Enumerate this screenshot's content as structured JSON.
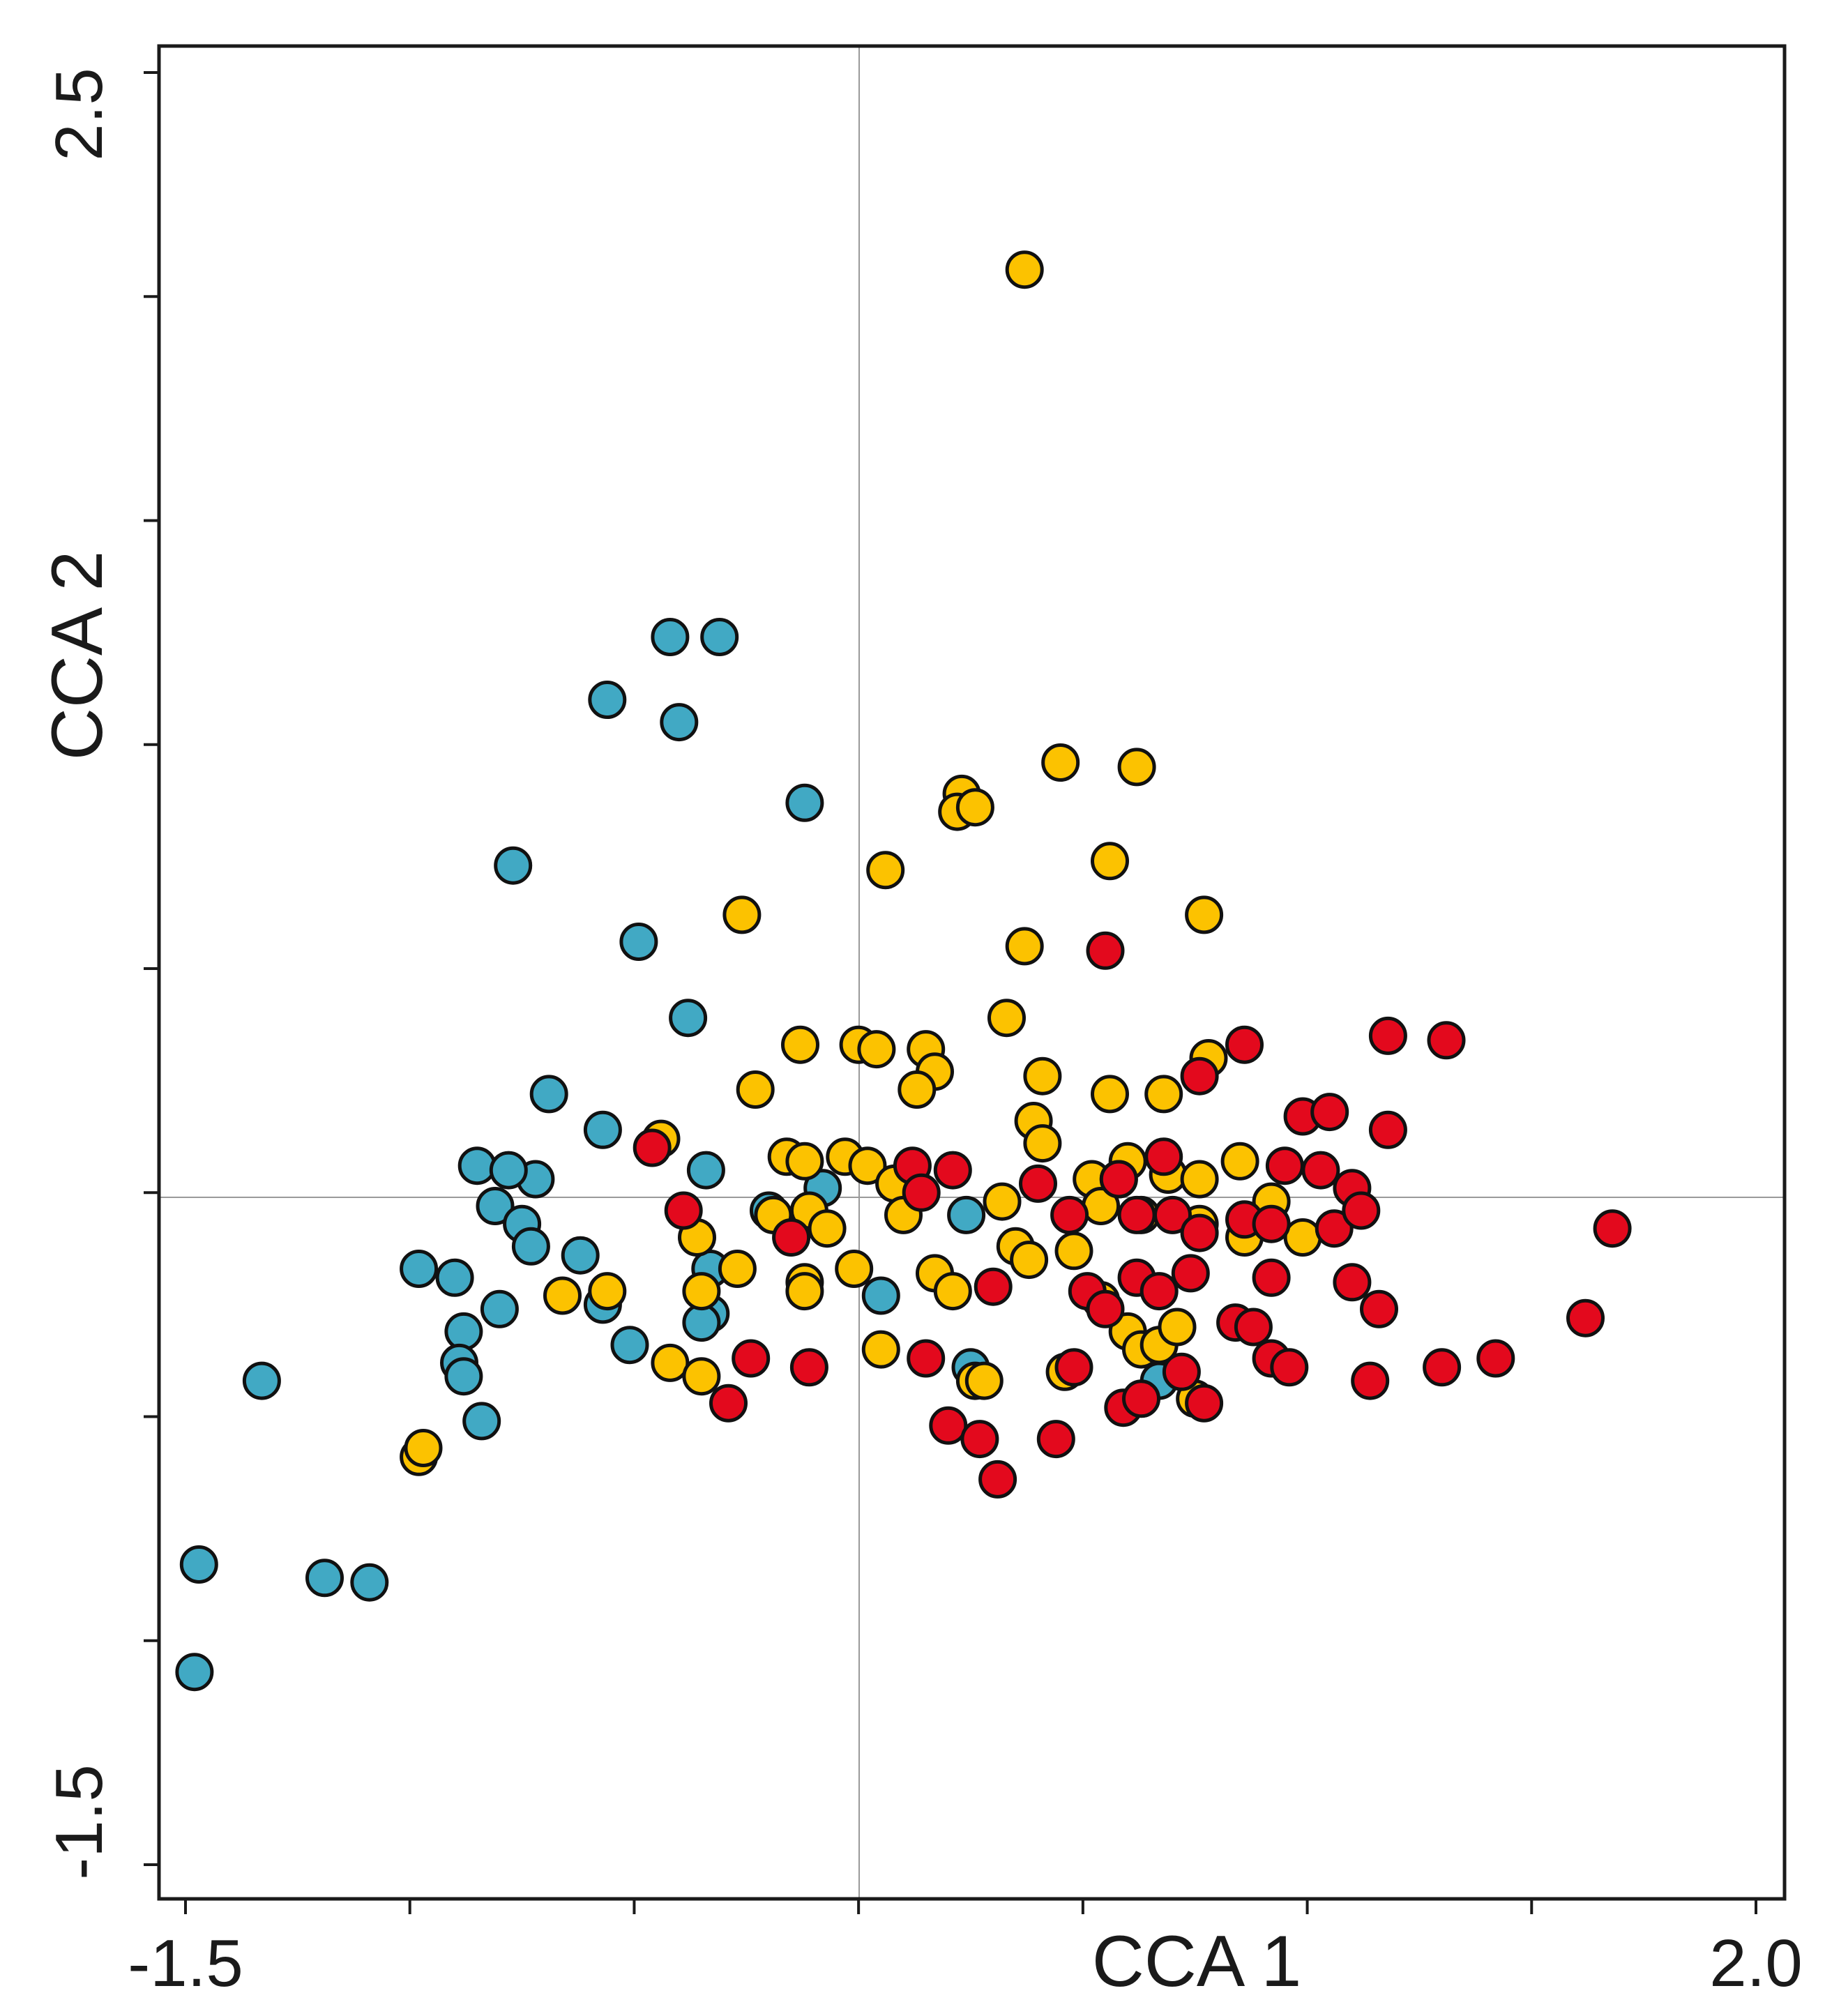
{
  "chart_data": {
    "type": "scatter",
    "title": "",
    "xlabel": "CCA 1",
    "ylabel": "CCA 2",
    "xlim": [
      -1.5,
      2.0
    ],
    "ylim": [
      -1.5,
      2.5
    ],
    "x_tick_labels": [
      "-1.5",
      "2.0"
    ],
    "y_tick_labels": [
      "2.5",
      "-1.5"
    ],
    "x_minor_ticks": [
      -1.5,
      -1.0,
      -0.5,
      0.0,
      0.5,
      1.0,
      1.5,
      2.0
    ],
    "y_minor_ticks": [
      2.5,
      2.0,
      1.5,
      1.0,
      0.5,
      0.0,
      -0.5,
      -1.0,
      -1.5
    ],
    "reference_lines": {
      "x": 0,
      "y": 0
    },
    "grid": false,
    "legend": "none",
    "series": [
      {
        "color": "#41a9c4",
        "points": [
          [
            -0.42,
            1.24
          ],
          [
            -0.31,
            1.24
          ],
          [
            -0.56,
            1.1
          ],
          [
            -0.4,
            1.05
          ],
          [
            -0.12,
            0.87
          ],
          [
            -0.77,
            0.73
          ],
          [
            -0.49,
            0.56
          ],
          [
            -0.38,
            0.39
          ],
          [
            -0.69,
            0.22
          ],
          [
            -0.57,
            0.14
          ],
          [
            -0.34,
            0.05
          ],
          [
            -0.2,
            -0.04
          ],
          [
            -0.85,
            0.06
          ],
          [
            -0.81,
            -0.03
          ],
          [
            -0.75,
            -0.07
          ],
          [
            -0.72,
            0.03
          ],
          [
            -0.78,
            0.05
          ],
          [
            -0.73,
            -0.12
          ],
          [
            -0.62,
            -0.14
          ],
          [
            -0.98,
            -0.17
          ],
          [
            -0.9,
            -0.19
          ],
          [
            -0.8,
            -0.26
          ],
          [
            -0.57,
            -0.25
          ],
          [
            -0.51,
            -0.34
          ],
          [
            -0.88,
            -0.31
          ],
          [
            -0.89,
            -0.38
          ],
          [
            -0.88,
            -0.41
          ],
          [
            -0.84,
            -0.51
          ],
          [
            -1.33,
            -0.42
          ],
          [
            -1.47,
            -0.83
          ],
          [
            -1.48,
            -1.07
          ],
          [
            -1.19,
            -0.86
          ],
          [
            -1.09,
            -0.87
          ],
          [
            -0.33,
            -0.17
          ],
          [
            -0.33,
            -0.27
          ],
          [
            -0.35,
            -0.29
          ],
          [
            -0.08,
            0.01
          ],
          [
            0.05,
            -0.23
          ],
          [
            0.24,
            -0.05
          ],
          [
            0.67,
            -0.42
          ],
          [
            0.25,
            -0.39
          ]
        ]
      },
      {
        "color": "#fcc200",
        "points": [
          [
            0.37,
            2.06
          ],
          [
            0.45,
            0.96
          ],
          [
            0.62,
            0.95
          ],
          [
            0.23,
            0.89
          ],
          [
            0.22,
            0.85
          ],
          [
            0.26,
            0.86
          ],
          [
            0.56,
            0.74
          ],
          [
            0.06,
            0.72
          ],
          [
            0.77,
            0.62
          ],
          [
            0.37,
            0.55
          ],
          [
            -0.26,
            0.62
          ],
          [
            0.33,
            0.39
          ],
          [
            -0.13,
            0.33
          ],
          [
            0.0,
            0.33
          ],
          [
            0.04,
            0.32
          ],
          [
            0.15,
            0.32
          ],
          [
            0.17,
            0.27
          ],
          [
            0.13,
            0.23
          ],
          [
            -0.23,
            0.23
          ],
          [
            0.41,
            0.26
          ],
          [
            0.56,
            0.22
          ],
          [
            0.68,
            0.22
          ],
          [
            0.78,
            0.3
          ],
          [
            0.39,
            0.16
          ],
          [
            0.41,
            0.11
          ],
          [
            0.6,
            0.07
          ],
          [
            0.69,
            0.04
          ],
          [
            0.85,
            0.07
          ],
          [
            -0.44,
            0.12
          ],
          [
            -0.16,
            0.08
          ],
          [
            -0.12,
            0.07
          ],
          [
            -0.03,
            0.08
          ],
          [
            0.02,
            0.06
          ],
          [
            0.08,
            0.02
          ],
          [
            0.52,
            0.03
          ],
          [
            0.58,
            0.03
          ],
          [
            0.76,
            0.03
          ],
          [
            0.92,
            -0.02
          ],
          [
            -0.19,
            -0.05
          ],
          [
            -0.11,
            -0.04
          ],
          [
            -0.07,
            -0.08
          ],
          [
            0.1,
            -0.05
          ],
          [
            0.32,
            -0.02
          ],
          [
            0.35,
            -0.12
          ],
          [
            0.38,
            -0.15
          ],
          [
            0.48,
            -0.13
          ],
          [
            0.54,
            -0.03
          ],
          [
            0.63,
            -0.05
          ],
          [
            0.76,
            -0.07
          ],
          [
            0.86,
            -0.1
          ],
          [
            0.99,
            -0.1
          ],
          [
            -0.36,
            -0.1
          ],
          [
            -0.27,
            -0.17
          ],
          [
            -0.35,
            -0.22
          ],
          [
            -0.12,
            -0.2
          ],
          [
            -0.12,
            -0.22
          ],
          [
            -0.01,
            -0.17
          ],
          [
            0.17,
            -0.18
          ],
          [
            0.21,
            -0.22
          ],
          [
            0.6,
            -0.31
          ],
          [
            0.63,
            -0.35
          ],
          [
            0.67,
            -0.34
          ],
          [
            0.71,
            -0.3
          ],
          [
            0.54,
            -0.24
          ],
          [
            -0.66,
            -0.23
          ],
          [
            -0.56,
            -0.22
          ],
          [
            -0.42,
            -0.38
          ],
          [
            -0.35,
            -0.41
          ],
          [
            0.05,
            -0.35
          ],
          [
            0.26,
            -0.42
          ],
          [
            0.28,
            -0.42
          ],
          [
            0.46,
            -0.4
          ],
          [
            0.75,
            -0.46
          ],
          [
            -0.98,
            -0.59
          ],
          [
            -0.97,
            -0.57
          ]
        ]
      },
      {
        "color": "#e3091d",
        "points": [
          [
            0.55,
            0.54
          ],
          [
            0.86,
            0.33
          ],
          [
            1.18,
            0.35
          ],
          [
            1.31,
            0.34
          ],
          [
            0.76,
            0.26
          ],
          [
            0.99,
            0.17
          ],
          [
            1.05,
            0.18
          ],
          [
            1.18,
            0.14
          ],
          [
            -0.46,
            0.1
          ],
          [
            0.12,
            0.06
          ],
          [
            0.21,
            0.05
          ],
          [
            0.58,
            0.03
          ],
          [
            0.68,
            0.08
          ],
          [
            0.95,
            0.06
          ],
          [
            1.03,
            0.05
          ],
          [
            1.1,
            0.01
          ],
          [
            0.14,
            0.0
          ],
          [
            0.4,
            0.02
          ],
          [
            0.47,
            -0.05
          ],
          [
            0.62,
            -0.05
          ],
          [
            0.7,
            -0.05
          ],
          [
            0.76,
            -0.09
          ],
          [
            0.86,
            -0.06
          ],
          [
            0.92,
            -0.07
          ],
          [
            1.06,
            -0.08
          ],
          [
            1.12,
            -0.04
          ],
          [
            1.68,
            -0.08
          ],
          [
            -0.39,
            -0.04
          ],
          [
            -0.15,
            -0.1
          ],
          [
            0.3,
            -0.21
          ],
          [
            0.51,
            -0.22
          ],
          [
            0.55,
            -0.26
          ],
          [
            0.62,
            -0.19
          ],
          [
            0.67,
            -0.22
          ],
          [
            0.74,
            -0.18
          ],
          [
            0.92,
            -0.19
          ],
          [
            1.1,
            -0.2
          ],
          [
            1.16,
            -0.26
          ],
          [
            0.84,
            -0.29
          ],
          [
            0.88,
            -0.3
          ],
          [
            0.92,
            -0.37
          ],
          [
            0.96,
            -0.39
          ],
          [
            1.62,
            -0.28
          ],
          [
            -0.24,
            -0.37
          ],
          [
            -0.11,
            -0.39
          ],
          [
            0.15,
            -0.37
          ],
          [
            0.48,
            -0.39
          ],
          [
            0.72,
            -0.4
          ],
          [
            1.14,
            -0.42
          ],
          [
            1.3,
            -0.39
          ],
          [
            1.42,
            -0.37
          ],
          [
            -0.29,
            -0.47
          ],
          [
            0.59,
            -0.48
          ],
          [
            0.63,
            -0.46
          ],
          [
            0.77,
            -0.47
          ],
          [
            0.2,
            -0.52
          ],
          [
            0.27,
            -0.55
          ],
          [
            0.44,
            -0.55
          ],
          [
            0.31,
            -0.64
          ]
        ]
      }
    ]
  }
}
